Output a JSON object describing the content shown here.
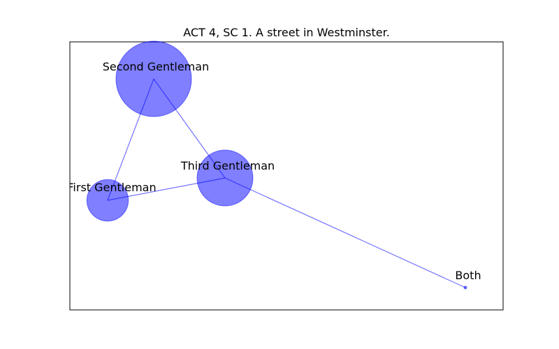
{
  "title": "ACT 4, SC 1. A street in Westminster.",
  "colors": {
    "node_fill": "#0000ff",
    "node_opacity": 0.5,
    "edge": "#0000ff",
    "edge_opacity": 0.55
  },
  "nodes": [
    {
      "id": "first",
      "label": "First Gentleman",
      "relative_size": 0.55
    },
    {
      "id": "second",
      "label": "Second Gentleman",
      "relative_size": 1.0
    },
    {
      "id": "third",
      "label": "Third Gentleman",
      "relative_size": 0.74
    },
    {
      "id": "both",
      "label": "Both",
      "relative_size": 0.03
    }
  ],
  "edges": [
    {
      "source": "first",
      "target": "second"
    },
    {
      "source": "first",
      "target": "third"
    },
    {
      "source": "second",
      "target": "third"
    },
    {
      "source": "third",
      "target": "both"
    }
  ]
}
